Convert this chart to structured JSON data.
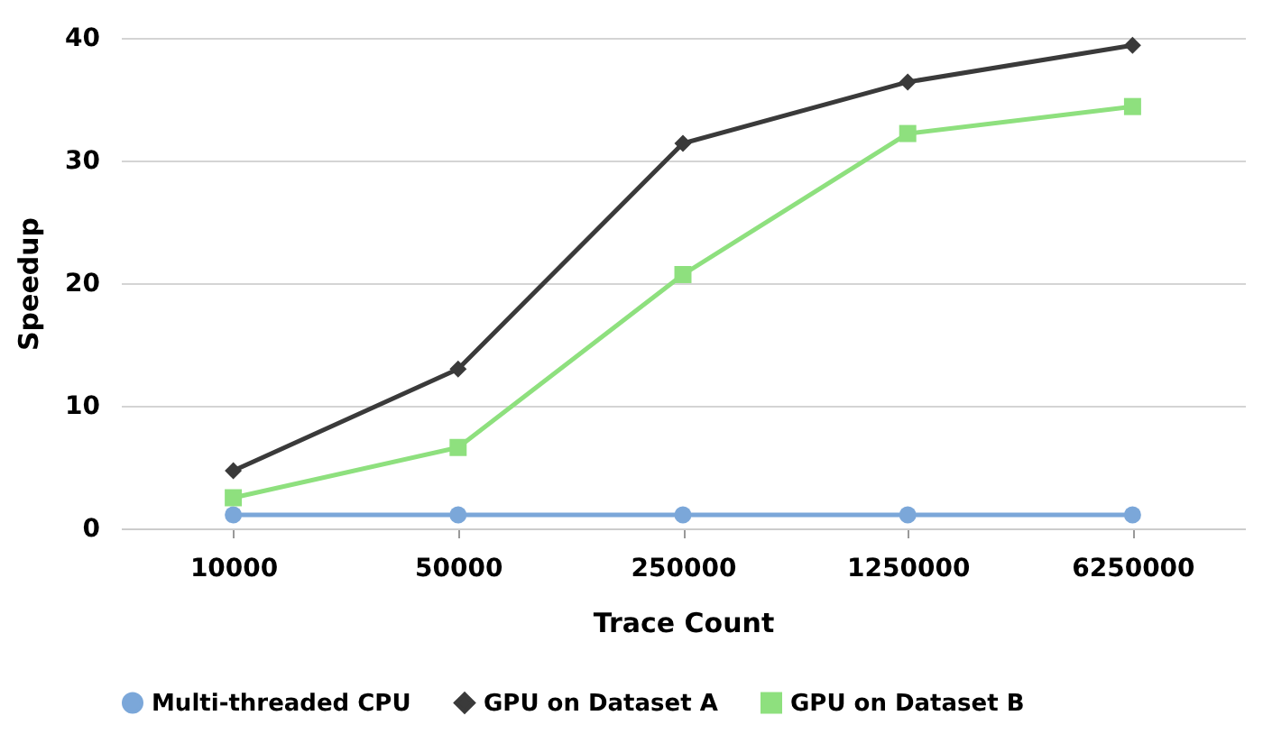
{
  "chart_data": {
    "type": "line",
    "xlabel": "Trace Count",
    "ylabel": "Speedup",
    "categories": [
      "10000",
      "50000",
      "250000",
      "1250000",
      "6250000"
    ],
    "series": [
      {
        "name": "Multi-threaded CPU",
        "color": "#7ba7d9",
        "marker": "circle",
        "values": [
          1.1,
          1.1,
          1.1,
          1.1,
          1.1
        ]
      },
      {
        "name": "GPU on Dataset A",
        "color": "#3a3a3a",
        "marker": "diamond",
        "values": [
          4.7,
          13.0,
          31.4,
          36.4,
          39.4
        ]
      },
      {
        "name": "GPU on Dataset B",
        "color": "#8ee07e",
        "marker": "square",
        "values": [
          2.5,
          6.6,
          20.7,
          32.2,
          34.4
        ]
      }
    ],
    "ylim": [
      0,
      40
    ],
    "yticks": [
      0,
      10,
      20,
      30,
      40
    ],
    "grid": "y",
    "legend": "bottom"
  }
}
